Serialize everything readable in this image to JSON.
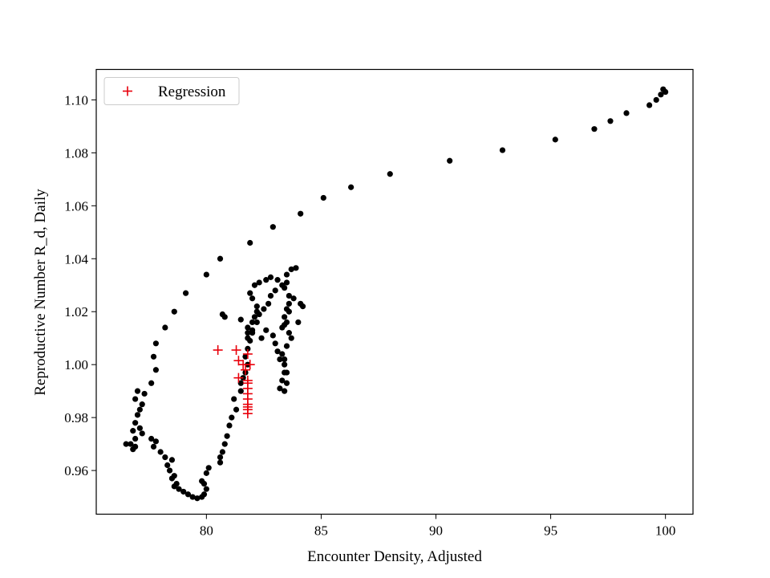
{
  "chart_data": {
    "type": "scatter",
    "title": "",
    "xlabel": "Encounter Density, Adjusted",
    "ylabel": "Reproductive Number R_d, Daily",
    "xlim": [
      75.2,
      101.2
    ],
    "ylim": [
      0.9435,
      1.1115
    ],
    "xticks": [
      80,
      85,
      90,
      95,
      100
    ],
    "yticks": [
      0.96,
      0.98,
      1.0,
      1.02,
      1.04,
      1.06,
      1.08,
      1.1
    ],
    "ytick_labels": [
      "0.96",
      "0.98",
      "1.00",
      "1.02",
      "1.04",
      "1.06",
      "1.08",
      "1.10"
    ],
    "grid": false,
    "legend_position": "upper-left",
    "series": [
      {
        "marker": "dot",
        "color": "#000000",
        "points": [
          [
            100.0,
            1.103
          ],
          [
            99.9,
            1.104
          ],
          [
            99.8,
            1.102
          ],
          [
            99.6,
            1.1
          ],
          [
            99.3,
            1.098
          ],
          [
            98.3,
            1.095
          ],
          [
            97.6,
            1.092
          ],
          [
            96.9,
            1.089
          ],
          [
            95.2,
            1.085
          ],
          [
            92.9,
            1.081
          ],
          [
            90.6,
            1.077
          ],
          [
            88.0,
            1.072
          ],
          [
            86.3,
            1.067
          ],
          [
            85.1,
            1.063
          ],
          [
            84.1,
            1.057
          ],
          [
            82.9,
            1.052
          ],
          [
            81.9,
            1.046
          ],
          [
            80.6,
            1.04
          ],
          [
            80.0,
            1.034
          ],
          [
            79.1,
            1.027
          ],
          [
            78.6,
            1.02
          ],
          [
            78.2,
            1.014
          ],
          [
            77.8,
            1.008
          ],
          [
            77.7,
            1.003
          ],
          [
            77.8,
            0.998
          ],
          [
            77.6,
            0.993
          ],
          [
            77.3,
            0.989
          ],
          [
            77.2,
            0.985
          ],
          [
            77.0,
            0.99
          ],
          [
            76.9,
            0.987
          ],
          [
            77.1,
            0.983
          ],
          [
            77.0,
            0.981
          ],
          [
            76.9,
            0.978
          ],
          [
            76.8,
            0.975
          ],
          [
            77.1,
            0.976
          ],
          [
            77.2,
            0.974
          ],
          [
            76.9,
            0.972
          ],
          [
            76.7,
            0.97
          ],
          [
            76.9,
            0.969
          ],
          [
            76.5,
            0.97
          ],
          [
            76.8,
            0.968
          ],
          [
            77.6,
            0.972
          ],
          [
            77.8,
            0.971
          ],
          [
            77.7,
            0.969
          ],
          [
            78.0,
            0.967
          ],
          [
            78.2,
            0.965
          ],
          [
            78.5,
            0.964
          ],
          [
            78.3,
            0.962
          ],
          [
            78.4,
            0.96
          ],
          [
            78.6,
            0.958
          ],
          [
            78.5,
            0.957
          ],
          [
            78.7,
            0.955
          ],
          [
            78.6,
            0.954
          ],
          [
            78.8,
            0.953
          ],
          [
            79.0,
            0.952
          ],
          [
            79.2,
            0.951
          ],
          [
            79.4,
            0.95
          ],
          [
            79.6,
            0.9495
          ],
          [
            79.8,
            0.95
          ],
          [
            79.9,
            0.951
          ],
          [
            80.0,
            0.953
          ],
          [
            79.9,
            0.955
          ],
          [
            79.8,
            0.956
          ],
          [
            80.0,
            0.959
          ],
          [
            80.1,
            0.961
          ],
          [
            80.6,
            0.963
          ],
          [
            80.6,
            0.965
          ],
          [
            80.7,
            0.967
          ],
          [
            80.8,
            0.97
          ],
          [
            80.9,
            0.973
          ],
          [
            81.0,
            0.977
          ],
          [
            81.1,
            0.98
          ],
          [
            81.3,
            0.983
          ],
          [
            81.2,
            0.987
          ],
          [
            81.5,
            0.99
          ],
          [
            81.5,
            0.993
          ],
          [
            81.6,
            0.995
          ],
          [
            81.7,
            0.997
          ],
          [
            81.8,
            1.0
          ],
          [
            81.7,
            1.003
          ],
          [
            81.8,
            1.006
          ],
          [
            81.9,
            1.009
          ],
          [
            81.8,
            1.012
          ],
          [
            82.0,
            1.013
          ],
          [
            82.2,
            1.016
          ],
          [
            82.3,
            1.019
          ],
          [
            82.5,
            1.021
          ],
          [
            82.7,
            1.023
          ],
          [
            82.8,
            1.026
          ],
          [
            83.0,
            1.028
          ],
          [
            83.3,
            1.03
          ],
          [
            83.1,
            1.032
          ],
          [
            82.8,
            1.033
          ],
          [
            82.6,
            1.032
          ],
          [
            82.3,
            1.031
          ],
          [
            82.1,
            1.03
          ],
          [
            81.9,
            1.027
          ],
          [
            82.0,
            1.025
          ],
          [
            82.2,
            1.022
          ],
          [
            82.2,
            1.02
          ],
          [
            82.1,
            1.018
          ],
          [
            82.0,
            1.016
          ],
          [
            81.8,
            1.014
          ],
          [
            82.0,
            1.012
          ],
          [
            82.4,
            1.01
          ],
          [
            82.6,
            1.013
          ],
          [
            82.9,
            1.011
          ],
          [
            83.0,
            1.008
          ],
          [
            83.1,
            1.005
          ],
          [
            83.2,
            1.002
          ],
          [
            83.5,
            1.007
          ],
          [
            83.3,
            1.014
          ],
          [
            83.4,
            1.018
          ],
          [
            83.5,
            1.021
          ],
          [
            83.6,
            1.023
          ],
          [
            83.6,
            1.026
          ],
          [
            83.4,
            1.029
          ],
          [
            83.5,
            1.031
          ],
          [
            83.5,
            1.034
          ],
          [
            83.7,
            1.036
          ],
          [
            83.9,
            1.0365
          ],
          [
            83.6,
            1.02
          ],
          [
            83.4,
            1.015
          ],
          [
            83.6,
            1.012
          ],
          [
            83.7,
            1.01
          ],
          [
            83.3,
            1.004
          ],
          [
            83.4,
            1.0
          ],
          [
            83.4,
            0.997
          ],
          [
            83.3,
            0.994
          ],
          [
            83.2,
            0.991
          ],
          [
            83.4,
            0.99
          ],
          [
            83.5,
            0.993
          ],
          [
            83.5,
            0.997
          ],
          [
            83.4,
            1.002
          ],
          [
            83.5,
            1.016
          ],
          [
            84.0,
            1.016
          ],
          [
            84.1,
            1.023
          ],
          [
            84.2,
            1.022
          ],
          [
            83.8,
            1.025
          ],
          [
            81.5,
            1.017
          ],
          [
            80.7,
            1.019
          ],
          [
            80.8,
            1.018
          ],
          [
            81.8,
            1.01
          ]
        ]
      },
      {
        "name": "Regression",
        "marker": "plus",
        "color": "#e8000b",
        "points": [
          [
            80.5,
            1.0055
          ],
          [
            81.3,
            1.0055
          ],
          [
            81.8,
            1.004
          ],
          [
            81.4,
            1.0015
          ],
          [
            81.6,
            1.0
          ],
          [
            81.9,
            1.0
          ],
          [
            81.7,
            0.998
          ],
          [
            81.4,
            0.995
          ],
          [
            81.8,
            0.994
          ],
          [
            81.8,
            0.993
          ],
          [
            81.8,
            0.991
          ],
          [
            81.8,
            0.989
          ],
          [
            81.8,
            0.987
          ],
          [
            81.8,
            0.985
          ],
          [
            81.8,
            0.984
          ],
          [
            81.8,
            0.983
          ],
          [
            81.8,
            0.9815
          ]
        ]
      }
    ]
  }
}
